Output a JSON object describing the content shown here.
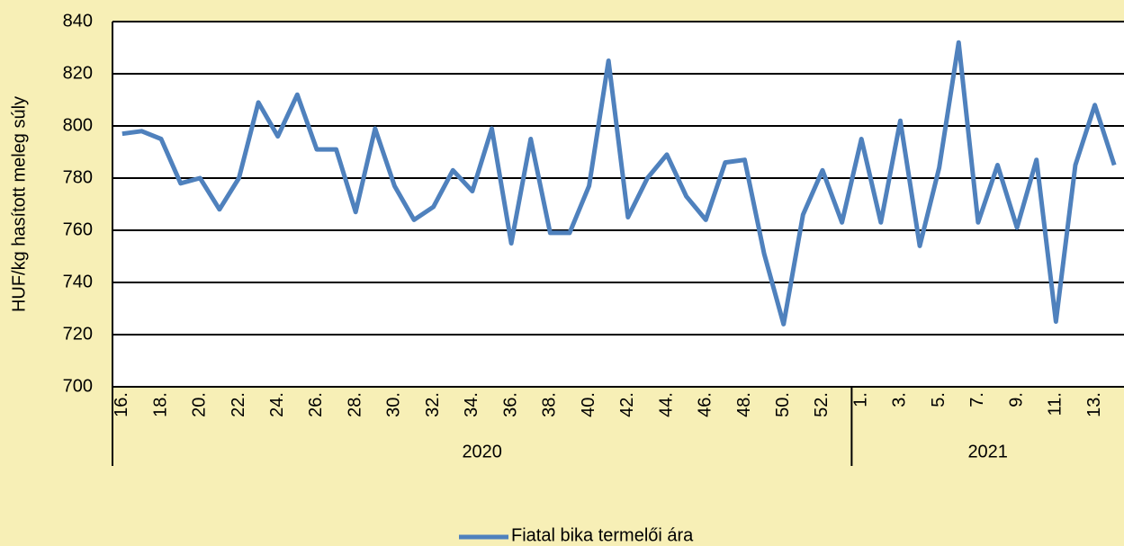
{
  "chart_data": {
    "type": "line",
    "y_label": "HUF/kg hasított meleg súly",
    "category_groups": [
      {
        "group": "2020",
        "labels": [
          "16.",
          null,
          "18.",
          null,
          "20.",
          null,
          "22.",
          null,
          "24.",
          null,
          "26.",
          null,
          "28.",
          null,
          "30.",
          null,
          "32.",
          null,
          "34.",
          null,
          "36.",
          null,
          "38.",
          null,
          "40.",
          null,
          "42.",
          null,
          "44.",
          null,
          "46.",
          null,
          "48.",
          null,
          "50.",
          null,
          "52.",
          null
        ]
      },
      {
        "group": "2021",
        "labels": [
          "1.",
          null,
          "3.",
          null,
          "5.",
          null,
          "7.",
          null,
          "9.",
          null,
          "11.",
          null,
          "13.",
          null
        ]
      }
    ],
    "series": [
      {
        "name": "Fiatal bika termelői ára",
        "color": "#4f81bd",
        "values": [
          797,
          798,
          795,
          778,
          780,
          768,
          780,
          809,
          796,
          812,
          791,
          791,
          767,
          799,
          777,
          764,
          769,
          783,
          775,
          799,
          755,
          795,
          759,
          759,
          777,
          825,
          765,
          780,
          789,
          773,
          764,
          786,
          787,
          751,
          724,
          766,
          783,
          763,
          795,
          763,
          802,
          754,
          784,
          832,
          763,
          785,
          761,
          787,
          725,
          785,
          808,
          785
        ]
      }
    ],
    "ylim": [
      700,
      840
    ],
    "yticks": [
      700,
      720,
      740,
      760,
      780,
      800,
      820,
      840
    ],
    "grid": true
  }
}
